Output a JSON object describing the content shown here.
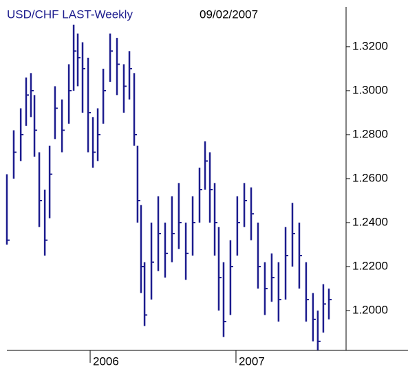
{
  "chart_data": {
    "type": "hlc",
    "title": "USD/CHF LAST-Weekly",
    "subtitle": "09/02/2007",
    "color": "#1c1c8e",
    "xlim": [
      2005.429,
      2007.755
    ],
    "xticks": [
      2006,
      2007
    ],
    "ylim": [
      1.1819,
      1.3381
    ],
    "yticks": [
      {
        "value": 1.2,
        "label": "1.2000"
      },
      {
        "value": 1.22,
        "label": "1.2200"
      },
      {
        "value": 1.24,
        "label": "1.2400"
      },
      {
        "value": 1.26,
        "label": "1.2600"
      },
      {
        "value": 1.28,
        "label": "1.2800"
      },
      {
        "value": 1.3,
        "label": "1.3000"
      },
      {
        "value": 1.32,
        "label": "1.3200"
      }
    ],
    "x": [
      2005.429,
      2005.476,
      2005.524,
      2005.561,
      2005.594,
      2005.618,
      2005.651,
      2005.689,
      2005.722,
      2005.759,
      2005.807,
      2005.854,
      2005.887,
      2005.915,
      2005.948,
      2005.986,
      2006.019,
      2006.052,
      2006.09,
      2006.137,
      2006.184,
      2006.231,
      2006.269,
      2006.302,
      2006.325,
      2006.349,
      2006.373,
      2006.42,
      2006.467,
      2006.514,
      2006.561,
      2006.608,
      2006.656,
      2006.703,
      2006.75,
      2006.788,
      2006.821,
      2006.854,
      2006.882,
      2006.915,
      2006.962,
      2007.009,
      2007.057,
      2007.104,
      2007.151,
      2007.198,
      2007.245,
      2007.292,
      2007.34,
      2007.387,
      2007.434,
      2007.481,
      2007.528,
      2007.561,
      2007.599,
      2007.637
    ],
    "series": [
      {
        "name": "High",
        "values": [
          1.262,
          1.282,
          1.292,
          1.306,
          1.308,
          1.298,
          1.272,
          1.255,
          1.275,
          1.302,
          1.296,
          1.312,
          1.33,
          1.326,
          1.322,
          1.315,
          1.288,
          1.292,
          1.31,
          1.326,
          1.324,
          1.312,
          1.318,
          1.308,
          1.275,
          1.248,
          1.222,
          1.24,
          1.252,
          1.24,
          1.252,
          1.258,
          1.24,
          1.252,
          1.265,
          1.277,
          1.272,
          1.258,
          1.238,
          1.222,
          1.232,
          1.252,
          1.258,
          1.256,
          1.24,
          1.222,
          1.226,
          1.222,
          1.238,
          1.249,
          1.24,
          1.222,
          1.208,
          1.2,
          1.212,
          1.21
        ]
      },
      {
        "name": "Low",
        "values": [
          1.23,
          1.26,
          1.268,
          1.284,
          1.288,
          1.27,
          1.238,
          1.225,
          1.242,
          1.278,
          1.272,
          1.285,
          1.3,
          1.302,
          1.29,
          1.272,
          1.265,
          1.268,
          1.285,
          1.304,
          1.298,
          1.29,
          1.296,
          1.275,
          1.24,
          1.208,
          1.193,
          1.205,
          1.218,
          1.215,
          1.222,
          1.228,
          1.214,
          1.225,
          1.24,
          1.255,
          1.24,
          1.225,
          1.2,
          1.188,
          1.198,
          1.225,
          1.238,
          1.232,
          1.21,
          1.198,
          1.204,
          1.195,
          1.205,
          1.22,
          1.21,
          1.195,
          1.186,
          1.182,
          1.19,
          1.196
        ]
      },
      {
        "name": "Close",
        "values": [
          1.232,
          1.272,
          1.28,
          1.298,
          1.3,
          1.282,
          1.25,
          1.232,
          1.262,
          1.292,
          1.282,
          1.3,
          1.318,
          1.315,
          1.31,
          1.29,
          1.272,
          1.28,
          1.3,
          1.318,
          1.312,
          1.302,
          1.31,
          1.28,
          1.25,
          1.22,
          1.198,
          1.222,
          1.235,
          1.226,
          1.235,
          1.24,
          1.226,
          1.24,
          1.255,
          1.268,
          1.255,
          1.24,
          1.215,
          1.195,
          1.22,
          1.24,
          1.25,
          1.244,
          1.22,
          1.21,
          1.215,
          1.205,
          1.225,
          1.235,
          1.225,
          1.205,
          1.196,
          1.186,
          1.203,
          1.205
        ]
      }
    ]
  }
}
